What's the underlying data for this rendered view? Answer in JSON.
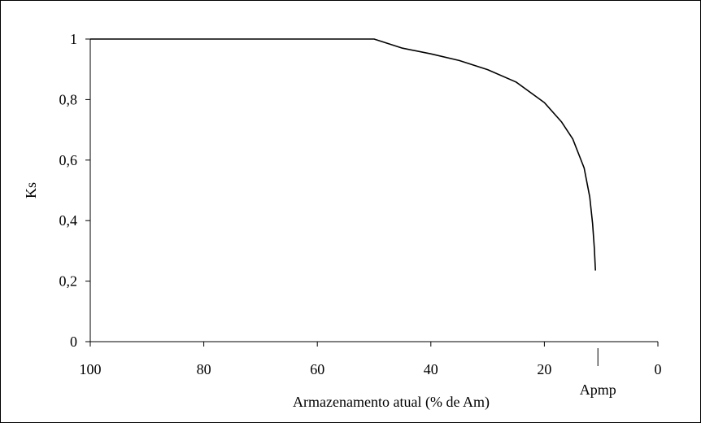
{
  "chart_data": {
    "type": "line",
    "title": "",
    "xlabel": "Armazenamento atual (% de Am)",
    "ylabel": "Ks",
    "xlim": [
      100,
      0
    ],
    "ylim": [
      0,
      1
    ],
    "x_reversed": true,
    "grid": false,
    "legend": "none",
    "x_ticks": [
      {
        "value": 100,
        "label": "100"
      },
      {
        "value": 80,
        "label": "80"
      },
      {
        "value": 60,
        "label": "60"
      },
      {
        "value": 40,
        "label": "40"
      },
      {
        "value": 20,
        "label": "20"
      },
      {
        "value": 0,
        "label": "0"
      }
    ],
    "y_ticks": [
      {
        "value": 0,
        "label": "0"
      },
      {
        "value": 0.2,
        "label": "0,2"
      },
      {
        "value": 0.4,
        "label": "0,4"
      },
      {
        "value": 0.6,
        "label": "0,6"
      },
      {
        "value": 0.8,
        "label": "0,8"
      },
      {
        "value": 1,
        "label": "1"
      }
    ],
    "annotation": {
      "label": "Apmp",
      "x": 11
    },
    "series": [
      {
        "color": "#000000",
        "points": [
          {
            "x": 100,
            "y": 1.0
          },
          {
            "x": 50,
            "y": 1.0
          },
          {
            "x": 45,
            "y": 0.97
          },
          {
            "x": 40,
            "y": 0.951
          },
          {
            "x": 35,
            "y": 0.929
          },
          {
            "x": 30,
            "y": 0.899
          },
          {
            "x": 25,
            "y": 0.858
          },
          {
            "x": 20,
            "y": 0.79
          },
          {
            "x": 17,
            "y": 0.727
          },
          {
            "x": 15,
            "y": 0.67
          },
          {
            "x": 13,
            "y": 0.574
          },
          {
            "x": 12,
            "y": 0.478
          },
          {
            "x": 11.5,
            "y": 0.39
          },
          {
            "x": 11.2,
            "y": 0.31
          },
          {
            "x": 11,
            "y": 0.235
          }
        ]
      }
    ]
  }
}
